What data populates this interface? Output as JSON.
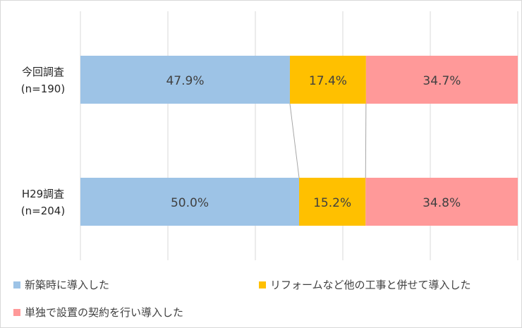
{
  "chart_data": {
    "type": "bar",
    "stacked": true,
    "orientation": "horizontal",
    "unit": "%",
    "xlim": [
      0,
      100
    ],
    "grid": true,
    "legend_position": "bottom",
    "categories": [
      [
        "今回調査",
        "(n=190)"
      ],
      [
        "H29調査",
        "(n=204)"
      ]
    ],
    "series": [
      {
        "name": "新築時に導入した",
        "color": "#9dc3e6",
        "values": [
          47.9,
          50.0
        ],
        "labels": [
          "47.9%",
          "50.0%"
        ]
      },
      {
        "name": "リフォームなど他の工事と併せて導入した",
        "color": "#ffc000",
        "values": [
          17.4,
          15.2
        ],
        "labels": [
          "17.4%",
          "15.2%"
        ]
      },
      {
        "name": "単独で設置の契約を行い導入した",
        "color": "#ff9999",
        "values": [
          34.7,
          34.8
        ],
        "labels": [
          "34.7%",
          "34.8%"
        ]
      }
    ]
  }
}
